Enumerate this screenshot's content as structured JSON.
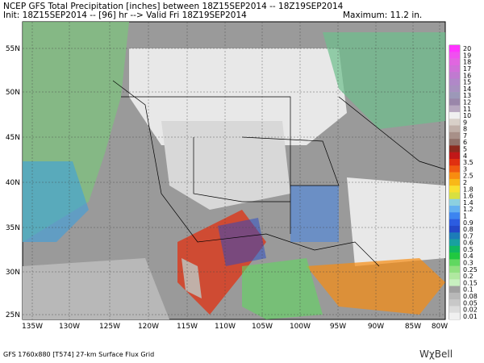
{
  "header": {
    "line1": "NCEP GFS Total Precipitation [inches] between 18Z15SEP2014 -- 18Z19SEP2014",
    "line2": "Init: 18Z15SEP2014 -- [96] hr --> Valid Fri 18Z19SEP2014",
    "maximum": "Maximum:  11.2 in."
  },
  "map": {
    "longitudes": [
      "135W",
      "130W",
      "125W",
      "120W",
      "115W",
      "110W",
      "105W",
      "100W",
      "95W",
      "90W",
      "85W",
      "80W"
    ],
    "latitudes": [
      "55N",
      "50N",
      "45N",
      "40N",
      "35N",
      "30N",
      "25N"
    ]
  },
  "colorbar": {
    "labels": [
      "20",
      "19",
      "18",
      "17",
      "16",
      "15",
      "14",
      "13",
      "12",
      "11",
      "10",
      "9",
      "8",
      "7",
      "6",
      "5",
      "4",
      "3.5",
      "3",
      "2.5",
      "2",
      "1.8",
      "1.6",
      "1.4",
      "1.2",
      "1",
      "0.9",
      "0.8",
      "0.7",
      "0.6",
      "0.5",
      "0.4",
      "0.3",
      "0.25",
      "0.2",
      "0.15",
      "0.1",
      "0.08",
      "0.05",
      "0.02",
      "0.01"
    ],
    "colors": [
      "#ff33ff",
      "#f050f0",
      "#e066e0",
      "#d070d8",
      "#c07ad0",
      "#b088c8",
      "#a890c0",
      "#9c98b8",
      "#9a86aa",
      "#b8a8c0",
      "#f0f0f0",
      "#d8d0c8",
      "#c0b0a8",
      "#a89088",
      "#907068",
      "#8c2a1e",
      "#c01818",
      "#e03010",
      "#f05a10",
      "#f88c10",
      "#f8b818",
      "#f8e030",
      "#d8e040",
      "#8cd0e0",
      "#64b0f0",
      "#3c84f0",
      "#2c5ce0",
      "#2448c8",
      "#1c7cb8",
      "#18a0a0",
      "#10b860",
      "#20c840",
      "#60d860",
      "#90e080",
      "#b0e8a0",
      "#c8f0c0",
      "#a0a0a0",
      "#b8b8b8",
      "#c8c8c8",
      "#dcdcdc",
      "#f0f0f0"
    ]
  },
  "footer": {
    "grid": "GFS 1760x880 [T574] 27-km Surface Flux Grid",
    "logo": "WχBell"
  }
}
